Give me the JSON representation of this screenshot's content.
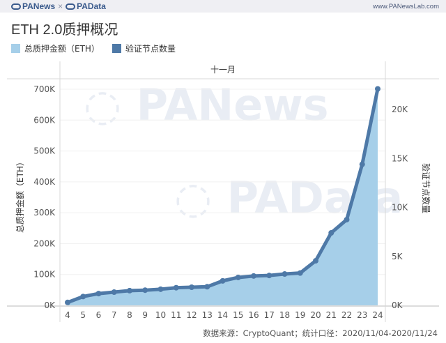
{
  "header": {
    "brand_left": "PANews",
    "brand_sep": "×",
    "brand_right": "PAData",
    "site": "www.PANewsLab.com"
  },
  "title": "ETH 2.0质押概况",
  "legend": [
    {
      "label": "总质押金额（ETH）",
      "color": "#a6cfe9"
    },
    {
      "label": "验证节点数量",
      "color": "#4e79a7"
    }
  ],
  "footer": "数据来源：CryptoQuant；统计口径：2020/11/04-2020/11/24",
  "watermarks": [
    "PANews",
    "PAData"
  ],
  "chart_data": {
    "type": "line+area",
    "title": "ETH 2.0质押概况",
    "header_label": "十一月",
    "xlabel": "",
    "categories": [
      "4",
      "5",
      "6",
      "7",
      "8",
      "9",
      "10",
      "11",
      "12",
      "13",
      "14",
      "15",
      "16",
      "17",
      "18",
      "19",
      "20",
      "21",
      "22",
      "23",
      "24"
    ],
    "series": [
      {
        "name": "总质押金额（ETH）",
        "type": "area",
        "axis": "left",
        "color": "#a6cfe9",
        "values": [
          9600,
          28800,
          38400,
          43200,
          48000,
          49600,
          52800,
          57600,
          59200,
          60800,
          80000,
          91200,
          96000,
          97600,
          102400,
          105600,
          145600,
          236800,
          280000,
          460800,
          707200
        ]
      },
      {
        "name": "验证节点数量",
        "type": "line",
        "axis": "right",
        "color": "#4e79a7",
        "values": [
          300,
          900,
          1200,
          1350,
          1500,
          1550,
          1650,
          1800,
          1850,
          1900,
          2500,
          2850,
          3000,
          3050,
          3200,
          3300,
          4550,
          7400,
          8750,
          14400,
          22100
        ]
      }
    ],
    "y_left": {
      "label": "总质押金额（ETH）",
      "ticks": [
        "0K",
        "100K",
        "200K",
        "300K",
        "400K",
        "500K",
        "600K",
        "700K"
      ],
      "range": [
        0,
        740000
      ]
    },
    "y_right": {
      "label": "验证节点数量",
      "ticks": [
        "0K",
        "5K",
        "10K",
        "15K",
        "20K"
      ],
      "range": [
        0,
        23300
      ]
    },
    "grid": true,
    "legend_position": "top-left"
  }
}
